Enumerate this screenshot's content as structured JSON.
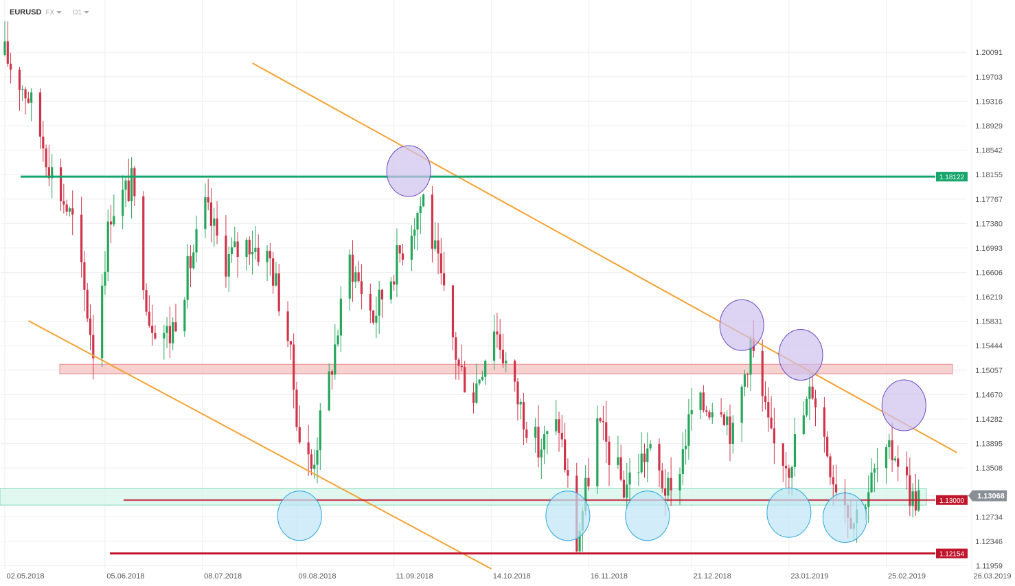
{
  "header": {
    "symbol": "EURUSD",
    "market": "FX",
    "timeframe": "D1"
  },
  "chart_data": {
    "type": "candlestick",
    "instrument": "EURUSD",
    "timeframe": "D1",
    "x_range": [
      "2018-05-02",
      "2019-03-26"
    ],
    "x_ticks": [
      "02.05.2018",
      "05.06.2018",
      "08.07.2018",
      "09.08.2018",
      "11.09.2018",
      "14.10.2018",
      "16.11.2018",
      "21.12.2018",
      "23.01.2019",
      "25.02.2019",
      "26.03.2019"
    ],
    "y_ticks": [
      "1.20091",
      "1.19703",
      "1.19316",
      "1.18929",
      "1.18542",
      "1.18155",
      "1.17767",
      "1.17380",
      "1.16993",
      "1.16606",
      "1.16219",
      "1.15831",
      "1.15444",
      "1.15057",
      "1.14670",
      "1.14282",
      "1.13895",
      "1.13508",
      "1.13068",
      "1.12734",
      "1.12346",
      "1.11959"
    ],
    "y_range": [
      1.1191,
      1.2055
    ],
    "current_price": "1.13068",
    "colors": {
      "up": "#26a65b",
      "down": "#d0344a",
      "trend": "#f5a133",
      "support": "#c0162c",
      "resistance": "#16a56c"
    },
    "price_path": [
      {
        "d": "2018-05-02",
        "p": 1.2005
      },
      {
        "d": "2018-05-10",
        "p": 1.194
      },
      {
        "d": "2018-05-18",
        "p": 1.182
      },
      {
        "d": "2018-05-25",
        "p": 1.174
      },
      {
        "d": "2018-05-30",
        "p": 1.16
      },
      {
        "d": "2018-06-01",
        "p": 1.154
      },
      {
        "d": "2018-06-07",
        "p": 1.176
      },
      {
        "d": "2018-06-14",
        "p": 1.18
      },
      {
        "d": "2018-06-20",
        "p": 1.159
      },
      {
        "d": "2018-06-27",
        "p": 1.156
      },
      {
        "d": "2018-07-03",
        "p": 1.166
      },
      {
        "d": "2018-07-09",
        "p": 1.176
      },
      {
        "d": "2018-07-16",
        "p": 1.168
      },
      {
        "d": "2018-07-24",
        "p": 1.171
      },
      {
        "d": "2018-07-31",
        "p": 1.168
      },
      {
        "d": "2018-08-06",
        "p": 1.156
      },
      {
        "d": "2018-08-10",
        "p": 1.14
      },
      {
        "d": "2018-08-14",
        "p": 1.135
      },
      {
        "d": "2018-08-20",
        "p": 1.149
      },
      {
        "d": "2018-08-27",
        "p": 1.168
      },
      {
        "d": "2018-09-04",
        "p": 1.159
      },
      {
        "d": "2018-09-12",
        "p": 1.168
      },
      {
        "d": "2018-09-21",
        "p": 1.178
      },
      {
        "d": "2018-09-28",
        "p": 1.162
      },
      {
        "d": "2018-10-03",
        "p": 1.151
      },
      {
        "d": "2018-10-08",
        "p": 1.147
      },
      {
        "d": "2018-10-15",
        "p": 1.158
      },
      {
        "d": "2018-10-22",
        "p": 1.147
      },
      {
        "d": "2018-10-30",
        "p": 1.138
      },
      {
        "d": "2018-11-06",
        "p": 1.142
      },
      {
        "d": "2018-11-12",
        "p": 1.123
      },
      {
        "d": "2018-11-19",
        "p": 1.142
      },
      {
        "d": "2018-11-28",
        "p": 1.132
      },
      {
        "d": "2018-12-06",
        "p": 1.138
      },
      {
        "d": "2018-12-14",
        "p": 1.13
      },
      {
        "d": "2018-12-21",
        "p": 1.144
      },
      {
        "d": "2018-12-31",
        "p": 1.146
      },
      {
        "d": "2019-01-04",
        "p": 1.14
      },
      {
        "d": "2019-01-10",
        "p": 1.155
      },
      {
        "d": "2019-01-17",
        "p": 1.139
      },
      {
        "d": "2019-01-23",
        "p": 1.136
      },
      {
        "d": "2019-01-31",
        "p": 1.148
      },
      {
        "d": "2019-02-07",
        "p": 1.134
      },
      {
        "d": "2019-02-14",
        "p": 1.127
      },
      {
        "d": "2019-02-21",
        "p": 1.134
      },
      {
        "d": "2019-02-28",
        "p": 1.138
      },
      {
        "d": "2019-03-06",
        "p": 1.13
      },
      {
        "d": "2019-03-08",
        "p": 1.1307
      }
    ],
    "levels": [
      {
        "price": 1.18122,
        "label": "1.18122",
        "color": "#16a56c"
      },
      {
        "price": 1.13,
        "label": "1.13000",
        "color": "#c0162c"
      },
      {
        "price": 1.12154,
        "label": "1.12154",
        "color": "#c0162c"
      }
    ],
    "zones": [
      {
        "top": 1.1515,
        "bottom": 1.15,
        "color": "#f5c2c2"
      },
      {
        "top": 1.1318,
        "bottom": 1.1292,
        "color": "#d6f5ea"
      }
    ],
    "trendlines": [
      {
        "from": {
          "d": "2018-07-25",
          "p": 1.1992
        },
        "to": {
          "d": "2019-03-21",
          "p": 1.1375
        }
      },
      {
        "from": {
          "d": "2018-05-10",
          "p": 1.1584
        },
        "to": {
          "d": "2018-10-14",
          "p": 1.1191
        }
      }
    ],
    "highlight_circles": [
      {
        "d": "2018-09-16",
        "p": 1.1821,
        "color": "purple"
      },
      {
        "d": "2019-01-07",
        "p": 1.1577,
        "color": "purple"
      },
      {
        "d": "2019-01-27",
        "p": 1.153,
        "color": "purple"
      },
      {
        "d": "2019-03-03",
        "p": 1.145,
        "color": "purple"
      },
      {
        "d": "2018-08-10",
        "p": 1.1275,
        "color": "blue"
      },
      {
        "d": "2018-11-09",
        "p": 1.1275,
        "color": "blue"
      },
      {
        "d": "2018-12-06",
        "p": 1.1275,
        "color": "blue"
      },
      {
        "d": "2019-01-23",
        "p": 1.128,
        "color": "blue"
      },
      {
        "d": "2019-02-11",
        "p": 1.1272,
        "color": "blue"
      }
    ]
  }
}
